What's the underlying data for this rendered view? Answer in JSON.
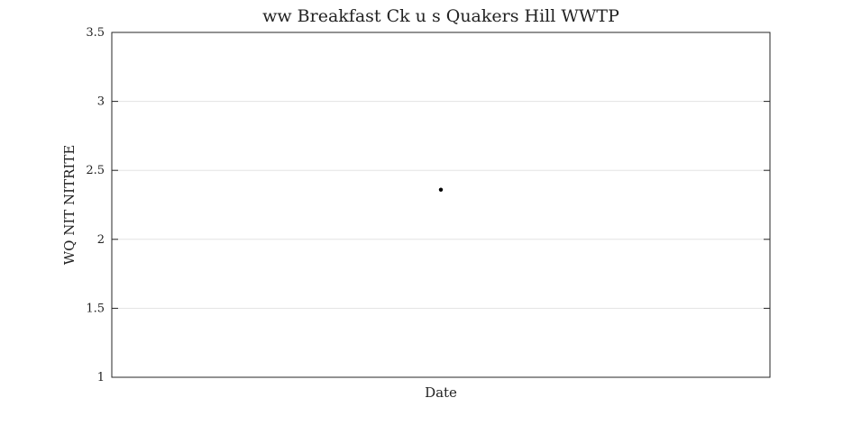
{
  "chart_data": {
    "type": "scatter",
    "title": "ww Breakfast Ck u s Quakers Hill WWTP",
    "xlabel": "Date",
    "ylabel": "WQ NIT NITRITE",
    "ylim": [
      1,
      3.5
    ],
    "y_ticks": [
      1,
      1.5,
      2,
      2.5,
      3,
      3.5
    ],
    "y_tick_labels": [
      "1",
      "1.5",
      "2",
      "2.5",
      "3",
      "3.5"
    ],
    "grid": true,
    "series": [
      {
        "values": [
          2.36
        ]
      }
    ]
  }
}
